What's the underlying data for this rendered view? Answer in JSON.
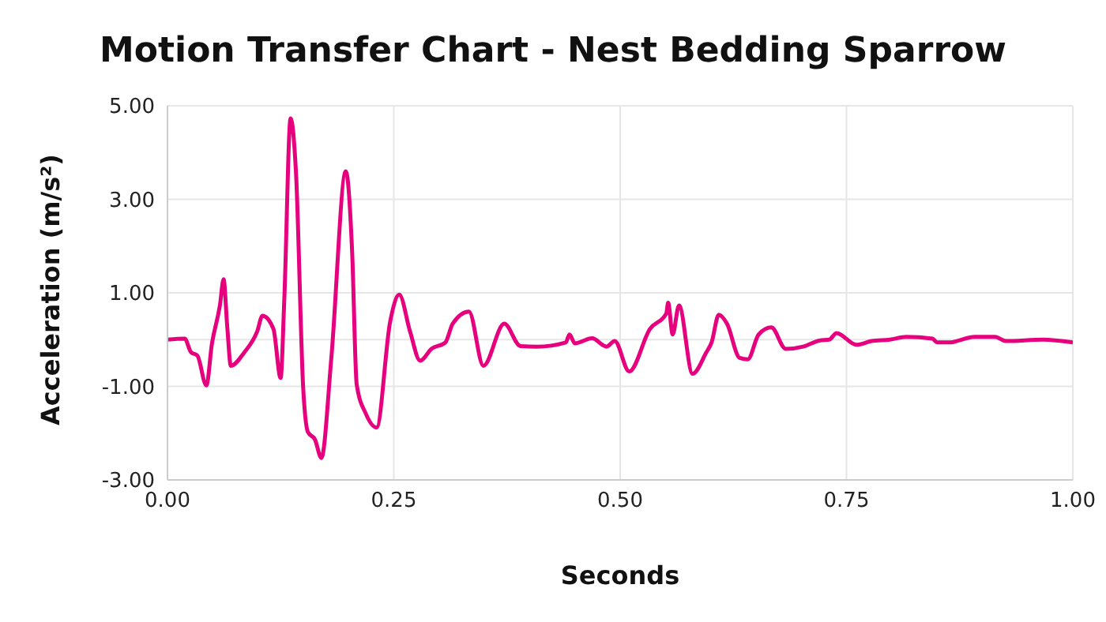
{
  "chart_data": {
    "type": "line",
    "title": "Motion Transfer Chart - Nest Bedding Sparrow",
    "xlabel": "Seconds",
    "ylabel": "Acceleration (m/s²)",
    "x": [
      0,
      0.019,
      0.026,
      0.033,
      0.043,
      0.049,
      0.058,
      0.062,
      0.066,
      0.07,
      0.085,
      0.099,
      0.105,
      0.117,
      0.125,
      0.129,
      0.136,
      0.142,
      0.15,
      0.155,
      0.163,
      0.17,
      0.181,
      0.197,
      0.204,
      0.209,
      0.219,
      0.231,
      0.246,
      0.256,
      0.268,
      0.279,
      0.292,
      0.307,
      0.315,
      0.333,
      0.349,
      0.372,
      0.39,
      0.408,
      0.44,
      0.444,
      0.45,
      0.469,
      0.485,
      0.494,
      0.51,
      0.533,
      0.551,
      0.553,
      0.558,
      0.565,
      0.58,
      0.595,
      0.601,
      0.609,
      0.618,
      0.632,
      0.641,
      0.653,
      0.667,
      0.683,
      0.702,
      0.72,
      0.731,
      0.739,
      0.761,
      0.778,
      0.798,
      0.816,
      0.845,
      0.85,
      0.865,
      0.874,
      0.891,
      0.914,
      0.926,
      0.967,
      1.0
    ],
    "series": [
      {
        "color": "#e6007e",
        "values": [
          0,
          0.02,
          -0.27,
          -0.34,
          -0.98,
          -0.1,
          0.74,
          1.29,
          0.28,
          -0.56,
          -0.27,
          0.17,
          0.51,
          0.23,
          -0.82,
          0.84,
          4.73,
          3.55,
          -1.07,
          -1.97,
          -2.14,
          -2.53,
          -0.39,
          3.6,
          1.86,
          -0.96,
          -1.58,
          -1.88,
          0.39,
          0.96,
          0.17,
          -0.45,
          -0.19,
          -0.06,
          0.34,
          0.6,
          -0.56,
          0.34,
          -0.14,
          -0.15,
          -0.06,
          0.11,
          -0.08,
          0.03,
          -0.15,
          -0.03,
          -0.68,
          0.23,
          0.56,
          0.79,
          0.11,
          0.73,
          -0.73,
          -0.28,
          -0.06,
          0.53,
          0.34,
          -0.39,
          -0.42,
          0.11,
          0.26,
          -0.2,
          -0.15,
          -0.02,
          0,
          0.14,
          -0.11,
          -0.03,
          0,
          0.06,
          0.02,
          -0.06,
          -0.06,
          -0.02,
          0.06,
          0.06,
          -0.03,
          0,
          -0.06
        ]
      }
    ],
    "xlim": [
      0,
      1
    ],
    "xticks": [
      {
        "value": 0,
        "label": "0.00"
      },
      {
        "value": 0.25,
        "label": "0.25"
      },
      {
        "value": 0.5,
        "label": "0.50"
      },
      {
        "value": 0.75,
        "label": "0.75"
      },
      {
        "value": 1,
        "label": "1.00"
      }
    ],
    "ylim": [
      -3,
      5
    ],
    "yticks": [
      {
        "value": -3,
        "label": "-3.00"
      },
      {
        "value": -1,
        "label": "-1.00"
      },
      {
        "value": 0,
        "label": null
      },
      {
        "value": 1,
        "label": "1.00"
      },
      {
        "value": 3,
        "label": "3.00"
      },
      {
        "value": 5,
        "label": "5.00"
      }
    ],
    "grid": true,
    "marker": "none",
    "line_style": "solid",
    "legend": false
  }
}
